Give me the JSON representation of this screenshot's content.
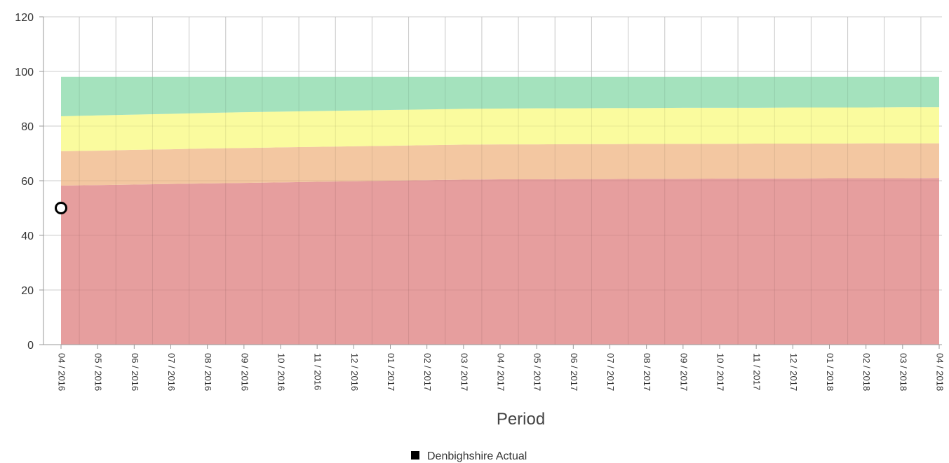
{
  "chart_data": {
    "type": "area",
    "title": "",
    "xlabel": "Period",
    "ylabel": "",
    "ylim": [
      0,
      120
    ],
    "y_ticks": [
      0,
      20,
      40,
      60,
      80,
      100,
      120
    ],
    "grid": true,
    "legend_position": "bottom-center",
    "categories": [
      "04 / 2016",
      "05 / 2016",
      "06 / 2016",
      "07 / 2016",
      "08 / 2016",
      "09 / 2016",
      "10 / 2016",
      "11 / 2016",
      "12 / 2016",
      "01 / 2017",
      "02 / 2017",
      "03 / 2017",
      "04 / 2017",
      "05 / 2017",
      "06 / 2017",
      "07 / 2017",
      "08 / 2017",
      "09 / 2017",
      "10 / 2017",
      "11 / 2017",
      "12 / 2017",
      "01 / 2018",
      "02 / 2018",
      "03 / 2018",
      "04 / 2018"
    ],
    "bands": [
      {
        "color": "#e49696",
        "lower": [
          0,
          0,
          0,
          0,
          0,
          0,
          0,
          0,
          0,
          0,
          0,
          0,
          0,
          0,
          0,
          0,
          0,
          0,
          0,
          0,
          0,
          0,
          0,
          0,
          0
        ],
        "upper": [
          58.2,
          58.4,
          58.6,
          58.8,
          59.0,
          59.2,
          59.4,
          59.6,
          59.8,
          60.0,
          60.2,
          60.4,
          60.5,
          60.5,
          60.6,
          60.6,
          60.7,
          60.7,
          60.8,
          60.8,
          60.8,
          60.9,
          60.9,
          60.9,
          61.0
        ]
      },
      {
        "color": "#f2c299",
        "lower": [
          58.2,
          58.4,
          58.6,
          58.8,
          59.0,
          59.2,
          59.4,
          59.6,
          59.8,
          60.0,
          60.2,
          60.4,
          60.5,
          60.5,
          60.6,
          60.6,
          60.7,
          60.7,
          60.8,
          60.8,
          60.8,
          60.9,
          60.9,
          60.9,
          61.0
        ],
        "upper": [
          70.8,
          71.0,
          71.3,
          71.5,
          71.8,
          72.0,
          72.2,
          72.4,
          72.6,
          72.8,
          73.0,
          73.2,
          73.3,
          73.3,
          73.4,
          73.4,
          73.5,
          73.5,
          73.5,
          73.6,
          73.6,
          73.6,
          73.7,
          73.7,
          73.7
        ]
      },
      {
        "color": "#fafb96",
        "lower": [
          70.8,
          71.0,
          71.3,
          71.5,
          71.8,
          72.0,
          72.2,
          72.4,
          72.6,
          72.8,
          73.0,
          73.2,
          73.3,
          73.3,
          73.4,
          73.4,
          73.5,
          73.5,
          73.5,
          73.6,
          73.6,
          73.6,
          73.7,
          73.7,
          73.7
        ],
        "upper": [
          83.6,
          83.9,
          84.2,
          84.5,
          84.8,
          85.1,
          85.3,
          85.5,
          85.7,
          85.9,
          86.1,
          86.3,
          86.4,
          86.5,
          86.5,
          86.6,
          86.6,
          86.7,
          86.7,
          86.7,
          86.8,
          86.8,
          86.8,
          86.9,
          86.9
        ]
      },
      {
        "color": "#9ce0b7",
        "lower": [
          83.6,
          83.9,
          84.2,
          84.5,
          84.8,
          85.1,
          85.3,
          85.5,
          85.7,
          85.9,
          86.1,
          86.3,
          86.4,
          86.5,
          86.5,
          86.6,
          86.6,
          86.7,
          86.7,
          86.7,
          86.8,
          86.8,
          86.8,
          86.9,
          86.9
        ],
        "upper": [
          98,
          98,
          98,
          98,
          98,
          98,
          98,
          98,
          98,
          98,
          98,
          98,
          98,
          98,
          98,
          98,
          98,
          98,
          98,
          98,
          98,
          98,
          98,
          98,
          98
        ]
      }
    ],
    "series": [
      {
        "name": "Denbighshire Actual",
        "color": "#000000",
        "points": [
          {
            "x": "04 / 2016",
            "y": 50
          }
        ]
      }
    ]
  },
  "colors": {
    "grid": "#d9d9d9",
    "axis": "#999999",
    "point_fill": "#ffffff",
    "point_stroke": "#000000"
  }
}
